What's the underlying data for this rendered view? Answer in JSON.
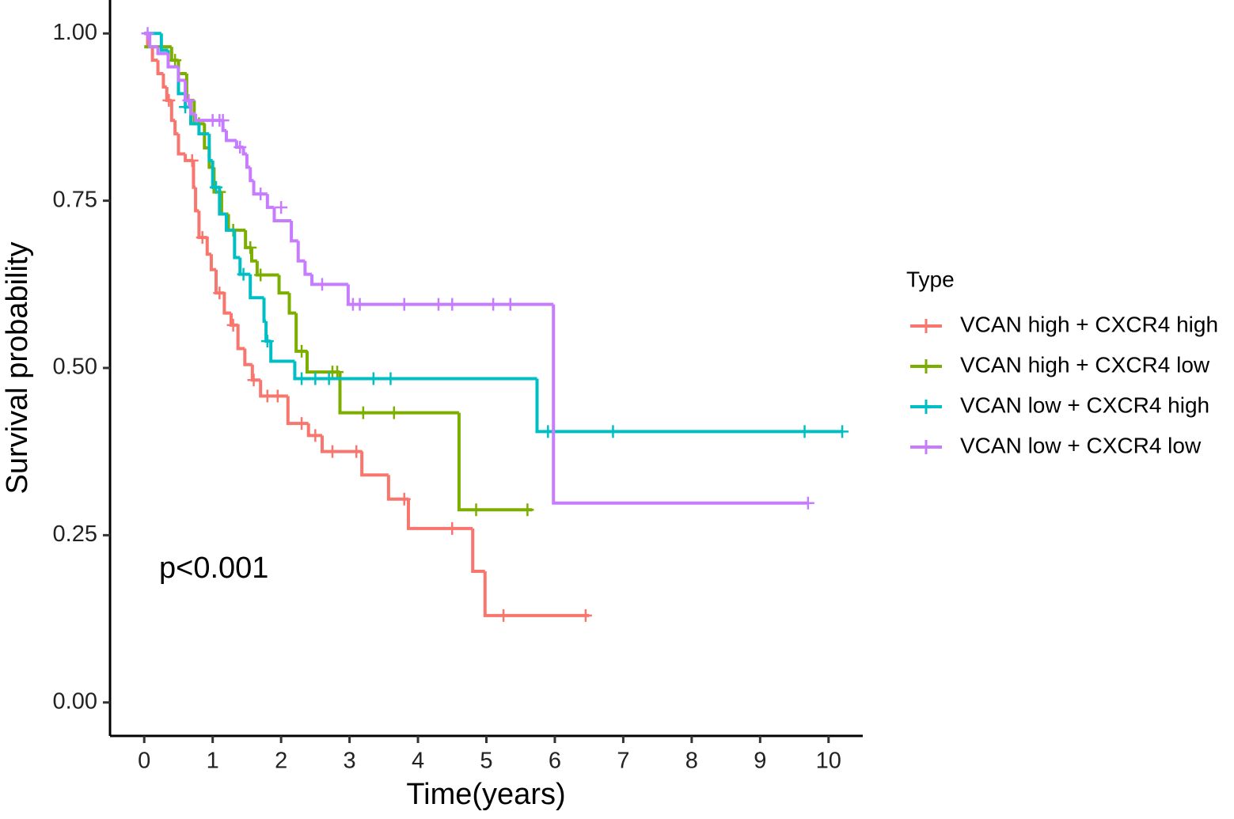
{
  "chart_data": {
    "type": "step",
    "x_label": "Time(years)",
    "y_label": "Survival probability",
    "annotation": "p<0.001",
    "legend_title": "Type",
    "legend_position": "right",
    "xlim": [
      -0.5,
      10.5
    ],
    "ylim": [
      -0.05,
      1.05
    ],
    "xticks": [
      0,
      1,
      2,
      3,
      4,
      5,
      6,
      7,
      8,
      9,
      10
    ],
    "yticks": [
      {
        "value": 0,
        "label": "0.00"
      },
      {
        "value": 0.25,
        "label": "0.25"
      },
      {
        "value": 0.5,
        "label": "0.50"
      },
      {
        "value": 0.75,
        "label": "0.75"
      },
      {
        "value": 1,
        "label": "1.00"
      }
    ],
    "series": [
      {
        "name": "VCAN high + CXCR4 high",
        "color": "#f8766d",
        "x": [
          0,
          0.05,
          0.12,
          0.2,
          0.28,
          0.33,
          0.4,
          0.45,
          0.5,
          0.6,
          0.72,
          0.75,
          0.8,
          0.92,
          0.98,
          1.05,
          1.17,
          1.27,
          1.37,
          1.47,
          1.58,
          1.7,
          2.1,
          2.4,
          2.6,
          3.18,
          3.57,
          3.86,
          4.8,
          4.98,
          6.5
        ],
        "values": [
          1.0,
          0.98,
          0.96,
          0.94,
          0.92,
          0.9,
          0.87,
          0.85,
          0.82,
          0.81,
          0.77,
          0.735,
          0.695,
          0.67,
          0.647,
          0.612,
          0.582,
          0.564,
          0.529,
          0.505,
          0.482,
          0.458,
          0.417,
          0.399,
          0.375,
          0.34,
          0.304,
          0.26,
          0.196,
          0.13,
          0.13
        ],
        "censor_x": [
          0.36,
          0.7,
          0.85,
          1.1,
          1.3,
          1.6,
          1.8,
          1.95,
          2.3,
          2.5,
          2.75,
          3.1,
          3.8,
          4.5,
          5.25,
          6.45
        ],
        "censor_values": [
          0.9,
          0.81,
          0.695,
          0.612,
          0.564,
          0.482,
          0.458,
          0.458,
          0.417,
          0.399,
          0.375,
          0.375,
          0.304,
          0.26,
          0.13,
          0.13
        ]
      },
      {
        "name": "VCAN high + CXCR4 low",
        "color": "#7cae00",
        "x": [
          0,
          0.4,
          0.5,
          0.62,
          0.73,
          0.88,
          0.95,
          1.02,
          1.13,
          1.23,
          1.48,
          1.57,
          1.65,
          1.97,
          2.12,
          2.22,
          2.38,
          2.86,
          4.6,
          5.67
        ],
        "values": [
          0.98,
          0.96,
          0.94,
          0.9,
          0.865,
          0.829,
          0.8,
          0.763,
          0.73,
          0.706,
          0.68,
          0.66,
          0.639,
          0.612,
          0.582,
          0.525,
          0.494,
          0.433,
          0.288,
          0.288
        ],
        "censor_x": [
          0.45,
          0.8,
          1.1,
          1.3,
          1.55,
          1.7,
          2.3,
          2.75,
          2.82,
          3.2,
          3.65,
          4.85,
          5.6
        ],
        "censor_values": [
          0.96,
          0.865,
          0.763,
          0.706,
          0.68,
          0.639,
          0.525,
          0.494,
          0.494,
          0.433,
          0.433,
          0.288,
          0.288
        ]
      },
      {
        "name": "VCAN low + CXCR4 high",
        "color": "#00bfc4",
        "x": [
          0,
          0.25,
          0.35,
          0.5,
          0.6,
          0.68,
          0.8,
          0.95,
          1.0,
          1.1,
          1.2,
          1.32,
          1.4,
          1.55,
          1.75,
          1.78,
          1.85,
          2.2,
          5.74,
          10.2
        ],
        "values": [
          1.0,
          0.975,
          0.95,
          0.91,
          0.89,
          0.865,
          0.85,
          0.81,
          0.77,
          0.73,
          0.706,
          0.665,
          0.64,
          0.605,
          0.57,
          0.54,
          0.51,
          0.484,
          0.405,
          0.405
        ],
        "censor_x": [
          0.6,
          1.05,
          1.45,
          1.8,
          2.3,
          2.5,
          2.7,
          3.35,
          3.6,
          5.9,
          6.85,
          9.65,
          10.2
        ],
        "censor_values": [
          0.89,
          0.77,
          0.64,
          0.54,
          0.484,
          0.484,
          0.484,
          0.484,
          0.484,
          0.405,
          0.405,
          0.405,
          0.405
        ]
      },
      {
        "name": "VCAN low + CXCR4 low",
        "color": "#c77cff",
        "x": [
          0,
          0.08,
          0.2,
          0.35,
          0.5,
          0.6,
          0.68,
          0.75,
          1.15,
          1.2,
          1.35,
          1.45,
          1.5,
          1.55,
          1.6,
          1.8,
          1.9,
          2.15,
          2.25,
          2.35,
          2.45,
          2.98,
          5.98,
          9.7
        ],
        "values": [
          1.0,
          0.98,
          0.97,
          0.95,
          0.93,
          0.9,
          0.88,
          0.87,
          0.855,
          0.84,
          0.83,
          0.82,
          0.8,
          0.78,
          0.76,
          0.74,
          0.72,
          0.69,
          0.66,
          0.64,
          0.625,
          0.595,
          0.298,
          0.298
        ],
        "censor_x": [
          0.05,
          0.65,
          1.0,
          1.1,
          1.15,
          1.4,
          1.7,
          2.0,
          2.6,
          3.05,
          3.15,
          3.8,
          4.3,
          4.5,
          5.1,
          5.35,
          9.7
        ],
        "censor_values": [
          1.0,
          0.9,
          0.87,
          0.87,
          0.87,
          0.83,
          0.76,
          0.74,
          0.625,
          0.595,
          0.595,
          0.595,
          0.595,
          0.595,
          0.595,
          0.595,
          0.298
        ]
      }
    ]
  }
}
